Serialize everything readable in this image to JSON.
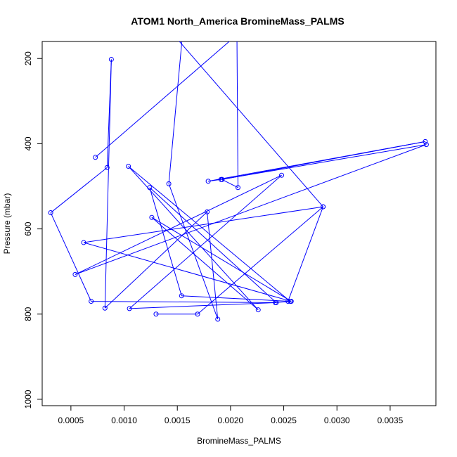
{
  "chart_data": {
    "type": "line",
    "title": "ATOM1 North_America BromineMass_PALMS",
    "xlabel": "BromineMass_PALMS",
    "ylabel": "Pressure (mbar)",
    "xlim": [
      0.00023,
      0.00393
    ],
    "ylim": [
      1015,
      160
    ],
    "y_reversed": true,
    "grid": false,
    "legend": "none",
    "marker": "open-circle",
    "x_ticks": [
      0.0005,
      0.001,
      0.0015,
      0.002,
      0.0025,
      0.003,
      0.0035
    ],
    "x_tick_labels": [
      "0.0005",
      "0.0010",
      "0.0015",
      "0.0020",
      "0.0025",
      "0.0030",
      "0.0035"
    ],
    "y_ticks": [
      200,
      400,
      600,
      800,
      1000
    ],
    "y_tick_labels": [
      "200",
      "400",
      "600",
      "800",
      "1000"
    ],
    "colors": {
      "series": "#0000ff",
      "axis": "#000000"
    },
    "series": [
      {
        "x": [
          0.00073,
          0.00208,
          0.00206,
          0.00207,
          0.00192,
          0.00192,
          0.00383,
          0.00179,
          0.00191,
          0.00384,
          0.00054,
          0.00248,
          0.00105,
          0.00243,
          0.00124,
          0.00154,
          0.00256,
          0.00104,
          0.00226,
          0.00126,
          0.00257,
          0.00062,
          0.00287,
          0.00145,
          0.00155,
          0.00142,
          0.00188,
          0.00178,
          0.00082,
          0.00088,
          0.00084,
          0.00031,
          0.00069,
          0.00242,
          0.00257,
          0.00254,
          0.00287,
          0.00169,
          0.0013
        ],
        "y": [
          432,
          140,
          140,
          503,
          484,
          484,
          395,
          488,
          484,
          402,
          707,
          474,
          787,
          773,
          503,
          757,
          770,
          453,
          790,
          573,
          770,
          632,
          548,
          140,
          140,
          494,
          812,
          560,
          786,
          202,
          456,
          562,
          770,
          773,
          770,
          770,
          548,
          800,
          800
        ]
      }
    ]
  }
}
